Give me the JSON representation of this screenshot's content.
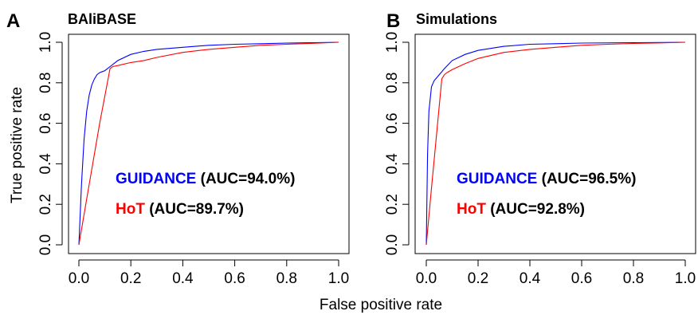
{
  "figure": {
    "xlabel": "False positive rate",
    "ylabel": "True positive rate"
  },
  "chart_data": [
    {
      "type": "line",
      "panel_letter": "A",
      "title": "BAliBASE",
      "xlabel": "False positive rate",
      "ylabel": "True positive rate",
      "xlim": [
        0,
        1
      ],
      "ylim": [
        0,
        1
      ],
      "xticks": [
        "0.0",
        "0.2",
        "0.4",
        "0.6",
        "0.8",
        "1.0"
      ],
      "yticks": [
        "0.0",
        "0.2",
        "0.4",
        "0.6",
        "0.8",
        "1.0"
      ],
      "grid": false,
      "legend_position": "center",
      "series": [
        {
          "name": "GUIDANCE",
          "auc_label": "(AUC=94.0%)",
          "color": "#0000ff",
          "x": [
            0,
            0.01,
            0.02,
            0.03,
            0.04,
            0.05,
            0.06,
            0.07,
            0.08,
            0.1,
            0.12,
            0.15,
            0.2,
            0.25,
            0.3,
            0.4,
            0.5,
            0.6,
            0.7,
            0.8,
            0.9,
            1.0
          ],
          "y": [
            0,
            0.3,
            0.52,
            0.66,
            0.74,
            0.79,
            0.82,
            0.84,
            0.85,
            0.86,
            0.88,
            0.91,
            0.94,
            0.955,
            0.965,
            0.975,
            0.985,
            0.99,
            0.993,
            0.996,
            0.998,
            1.0
          ]
        },
        {
          "name": "HoT",
          "auc_label": "(AUC=89.7%)",
          "color": "#ff0000",
          "x": [
            0,
            0.04,
            0.08,
            0.12,
            0.13,
            0.15,
            0.2,
            0.25,
            0.3,
            0.4,
            0.5,
            0.6,
            0.7,
            0.8,
            0.9,
            1.0
          ],
          "y": [
            0,
            0.3,
            0.6,
            0.87,
            0.88,
            0.885,
            0.9,
            0.91,
            0.925,
            0.95,
            0.965,
            0.975,
            0.985,
            0.99,
            0.995,
            1.0
          ]
        }
      ]
    },
    {
      "type": "line",
      "panel_letter": "B",
      "title": "Simulations",
      "xlabel": "False positive rate",
      "ylabel": "True positive rate",
      "xlim": [
        0,
        1
      ],
      "ylim": [
        0,
        1
      ],
      "xticks": [
        "0.0",
        "0.2",
        "0.4",
        "0.6",
        "0.8",
        "1.0"
      ],
      "yticks": [
        "0.0",
        "0.2",
        "0.4",
        "0.6",
        "0.8",
        "1.0"
      ],
      "grid": false,
      "legend_position": "center",
      "series": [
        {
          "name": "GUIDANCE",
          "auc_label": "(AUC=96.5%)",
          "color": "#0000ff",
          "x": [
            0,
            0.005,
            0.01,
            0.02,
            0.03,
            0.05,
            0.07,
            0.1,
            0.15,
            0.2,
            0.3,
            0.4,
            0.5,
            0.6,
            0.8,
            1.0
          ],
          "y": [
            0,
            0.45,
            0.66,
            0.78,
            0.81,
            0.84,
            0.87,
            0.91,
            0.94,
            0.96,
            0.98,
            0.99,
            0.993,
            0.996,
            0.998,
            1.0
          ]
        },
        {
          "name": "HoT",
          "auc_label": "(AUC=92.8%)",
          "color": "#ff0000",
          "x": [
            0,
            0.02,
            0.04,
            0.06,
            0.07,
            0.08,
            0.1,
            0.15,
            0.2,
            0.3,
            0.4,
            0.5,
            0.6,
            0.7,
            0.8,
            0.9,
            1.0
          ],
          "y": [
            0,
            0.28,
            0.55,
            0.82,
            0.84,
            0.85,
            0.865,
            0.895,
            0.92,
            0.95,
            0.965,
            0.975,
            0.985,
            0.99,
            0.994,
            0.997,
            1.0
          ]
        }
      ]
    }
  ]
}
